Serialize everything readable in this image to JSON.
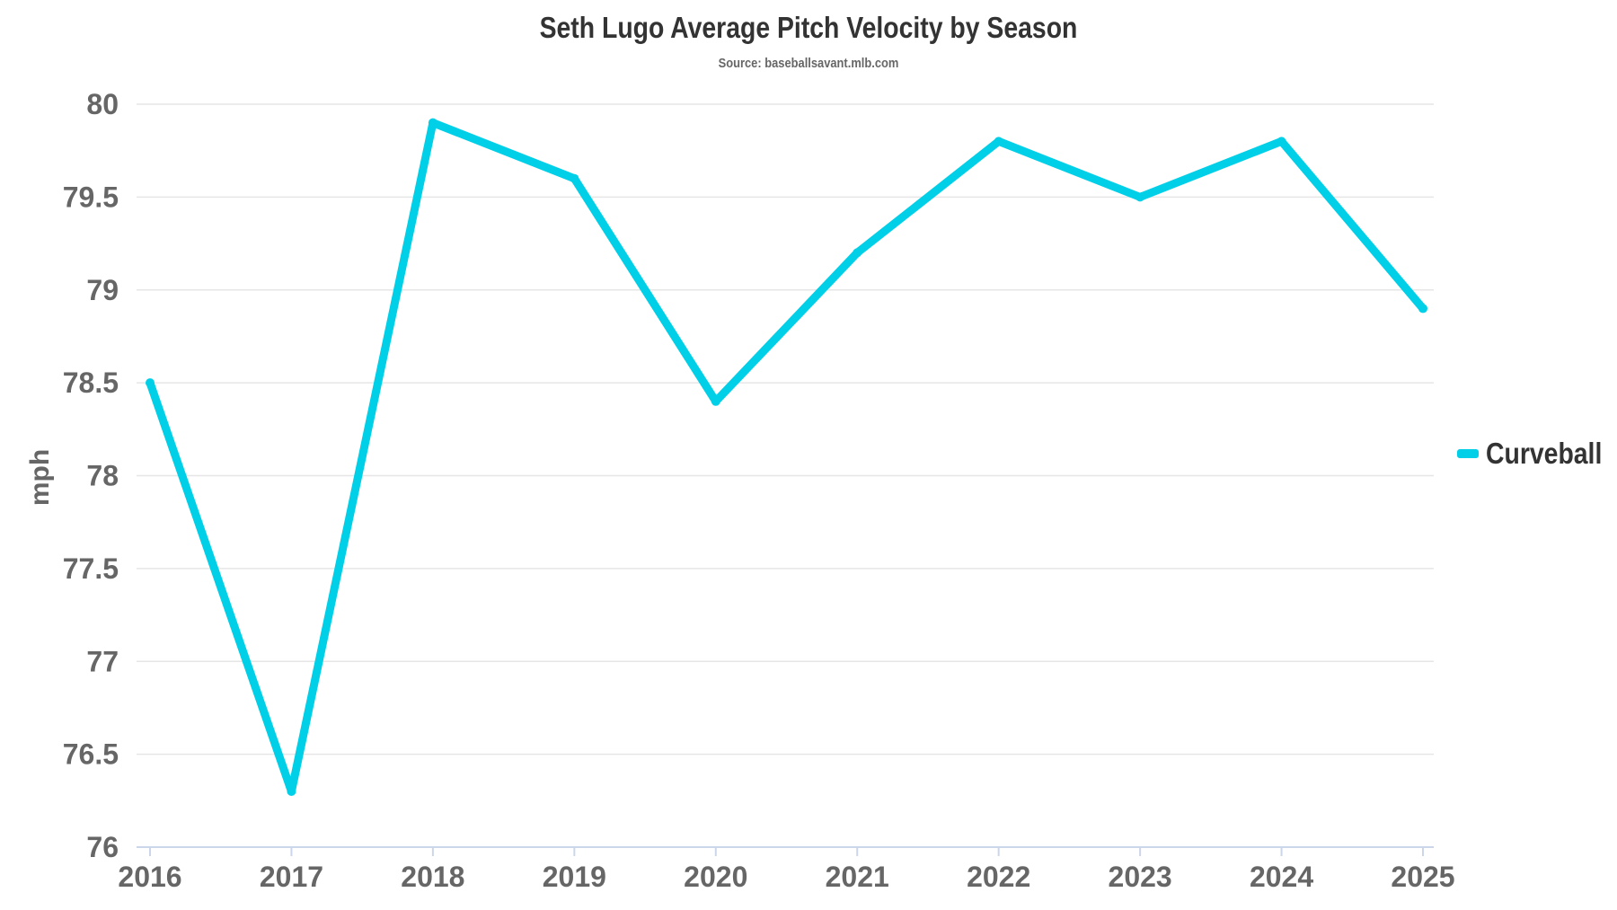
{
  "title": "Seth Lugo Average Pitch Velocity by Season",
  "subtitle": "Source: baseballsavant.mlb.com",
  "colors": {
    "series": "#00cfe8",
    "grid": "#e6e6e6",
    "axis_line": "#ccd6eb",
    "text": "#666666"
  },
  "legend": {
    "label": "Curveball"
  },
  "chart_data": {
    "type": "line",
    "title": "Seth Lugo Average Pitch Velocity by Season",
    "subtitle": "Source: baseballsavant.mlb.com",
    "xlabel": "",
    "ylabel": "mph",
    "ylim": [
      76,
      80
    ],
    "yticks": [
      "76",
      "76.5",
      "77",
      "77.5",
      "78",
      "78.5",
      "79",
      "79.5",
      "80"
    ],
    "categories": [
      "2016",
      "2017",
      "2018",
      "2019",
      "2020",
      "2021",
      "2022",
      "2023",
      "2024",
      "2025"
    ],
    "grid": true,
    "legend_position": "right",
    "series": [
      {
        "name": "Curveball",
        "color": "#00cfe8",
        "values": [
          78.5,
          76.3,
          79.9,
          79.6,
          78.4,
          79.2,
          79.8,
          79.5,
          79.8,
          78.9
        ]
      }
    ]
  }
}
